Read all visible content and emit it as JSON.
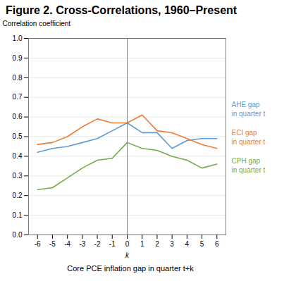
{
  "chart_data": {
    "type": "line",
    "title": "Figure 2. Cross-Correlations, 1960–Present",
    "ylabel": "Correlation coefficient",
    "xlabel": "k",
    "caption": "Core PCE inflation gap in quarter t+k",
    "x": [
      -6,
      -5,
      -4,
      -3,
      -2,
      -1,
      0,
      1,
      2,
      3,
      4,
      5,
      6
    ],
    "series": [
      {
        "name": "AHE gap\nin quarter t",
        "color": "#5b9bd5",
        "values": [
          0.42,
          0.44,
          0.45,
          0.47,
          0.49,
          0.53,
          0.57,
          0.52,
          0.52,
          0.44,
          0.48,
          0.49,
          0.49
        ]
      },
      {
        "name": "ECI gap\nin quarter t",
        "color": "#ed7d31",
        "values": [
          0.46,
          0.47,
          0.5,
          0.55,
          0.59,
          0.57,
          0.57,
          0.61,
          0.53,
          0.52,
          0.49,
          0.46,
          0.44
        ]
      },
      {
        "name": "CPH gap\nin quarter t",
        "color": "#70ad47",
        "values": [
          0.23,
          0.24,
          0.29,
          0.34,
          0.38,
          0.39,
          0.47,
          0.44,
          0.43,
          0.4,
          0.38,
          0.34,
          0.36
        ]
      }
    ],
    "xlim": [
      -6.6,
      6.6
    ],
    "xticks": [
      -6,
      -5,
      -4,
      -3,
      -2,
      -1,
      0,
      1,
      2,
      3,
      4,
      5,
      6
    ],
    "ylim": [
      0,
      1
    ],
    "yticks": [
      {
        "value": 0,
        "label": "0.0"
      },
      0.1,
      0.2,
      0.3,
      0.4,
      0.5,
      0.6,
      0.7,
      0.8,
      0.9,
      {
        "value": 1,
        "label": "1.0"
      }
    ],
    "grid": "y",
    "vline": {
      "x": 0,
      "color": "#808080"
    }
  }
}
